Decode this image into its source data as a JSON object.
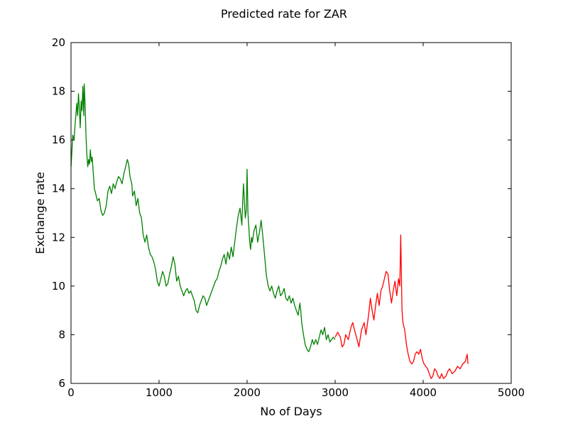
{
  "chart_data": {
    "type": "line",
    "title": "Predicted rate for ZAR",
    "xlabel": "No of Days",
    "ylabel": "Exchange rate",
    "xlim": [
      0,
      5000
    ],
    "ylim": [
      6,
      20
    ],
    "grid": false,
    "legend": "none",
    "x_ticks": [
      0,
      1000,
      2000,
      3000,
      4000,
      5000
    ],
    "y_ticks": [
      6,
      8,
      10,
      12,
      14,
      16,
      18,
      20
    ],
    "series": [
      {
        "color": "#ff0000",
        "points": [
          [
            3000,
            7.9
          ],
          [
            3030,
            8.1
          ],
          [
            3060,
            7.9
          ],
          [
            3080,
            7.5
          ],
          [
            3100,
            7.6
          ],
          [
            3120,
            8.0
          ],
          [
            3150,
            7.8
          ],
          [
            3180,
            8.3
          ],
          [
            3200,
            8.5
          ],
          [
            3220,
            8.2
          ],
          [
            3250,
            7.8
          ],
          [
            3270,
            7.5
          ],
          [
            3300,
            8.2
          ],
          [
            3330,
            8.5
          ],
          [
            3350,
            8.0
          ],
          [
            3380,
            8.8
          ],
          [
            3400,
            9.5
          ],
          [
            3420,
            9.0
          ],
          [
            3440,
            8.6
          ],
          [
            3460,
            9.2
          ],
          [
            3480,
            9.7
          ],
          [
            3500,
            9.2
          ],
          [
            3520,
            9.8
          ],
          [
            3540,
            10.0
          ],
          [
            3560,
            10.3
          ],
          [
            3580,
            10.6
          ],
          [
            3600,
            10.5
          ],
          [
            3620,
            9.8
          ],
          [
            3640,
            9.3
          ],
          [
            3660,
            9.8
          ],
          [
            3680,
            10.2
          ],
          [
            3700,
            9.6
          ],
          [
            3720,
            10.3
          ],
          [
            3735,
            10.0
          ],
          [
            3745,
            12.1
          ],
          [
            3760,
            9.0
          ],
          [
            3770,
            8.5
          ],
          [
            3790,
            8.2
          ],
          [
            3810,
            7.6
          ],
          [
            3830,
            7.2
          ],
          [
            3850,
            6.9
          ],
          [
            3870,
            6.8
          ],
          [
            3890,
            6.9
          ],
          [
            3910,
            7.2
          ],
          [
            3930,
            7.3
          ],
          [
            3950,
            7.2
          ],
          [
            3970,
            7.4
          ],
          [
            3990,
            7.0
          ],
          [
            4010,
            6.8
          ],
          [
            4030,
            6.7
          ],
          [
            4050,
            6.6
          ],
          [
            4070,
            6.4
          ],
          [
            4090,
            6.2
          ],
          [
            4110,
            6.3
          ],
          [
            4130,
            6.6
          ],
          [
            4150,
            6.5
          ],
          [
            4170,
            6.3
          ],
          [
            4190,
            6.2
          ],
          [
            4210,
            6.4
          ],
          [
            4230,
            6.2
          ],
          [
            4260,
            6.3
          ],
          [
            4280,
            6.5
          ],
          [
            4300,
            6.6
          ],
          [
            4330,
            6.4
          ],
          [
            4360,
            6.5
          ],
          [
            4390,
            6.7
          ],
          [
            4420,
            6.6
          ],
          [
            4450,
            6.8
          ],
          [
            4480,
            6.9
          ],
          [
            4500,
            7.2
          ],
          [
            4510,
            6.8
          ]
        ]
      },
      {
        "color": "#008000",
        "points": [
          [
            0,
            14.9
          ],
          [
            10,
            15.5
          ],
          [
            20,
            16.2
          ],
          [
            35,
            16.0
          ],
          [
            50,
            16.8
          ],
          [
            65,
            17.5
          ],
          [
            75,
            17.0
          ],
          [
            85,
            17.9
          ],
          [
            95,
            17.3
          ],
          [
            105,
            16.5
          ],
          [
            115,
            17.6
          ],
          [
            125,
            17.2
          ],
          [
            135,
            18.2
          ],
          [
            145,
            17.0
          ],
          [
            150,
            18.3
          ],
          [
            160,
            17.5
          ],
          [
            170,
            16.2
          ],
          [
            180,
            15.4
          ],
          [
            190,
            14.9
          ],
          [
            200,
            15.2
          ],
          [
            210,
            15.0
          ],
          [
            220,
            15.6
          ],
          [
            230,
            15.1
          ],
          [
            240,
            15.3
          ],
          [
            250,
            14.8
          ],
          [
            265,
            14.0
          ],
          [
            280,
            13.8
          ],
          [
            300,
            13.5
          ],
          [
            320,
            13.6
          ],
          [
            340,
            13.1
          ],
          [
            360,
            12.9
          ],
          [
            380,
            13.0
          ],
          [
            400,
            13.3
          ],
          [
            420,
            13.9
          ],
          [
            440,
            14.1
          ],
          [
            460,
            13.8
          ],
          [
            480,
            14.2
          ],
          [
            500,
            14.0
          ],
          [
            520,
            14.3
          ],
          [
            540,
            14.5
          ],
          [
            560,
            14.4
          ],
          [
            580,
            14.2
          ],
          [
            600,
            14.6
          ],
          [
            620,
            14.9
          ],
          [
            640,
            15.2
          ],
          [
            655,
            15.0
          ],
          [
            670,
            14.5
          ],
          [
            690,
            14.2
          ],
          [
            700,
            13.7
          ],
          [
            720,
            13.9
          ],
          [
            740,
            13.3
          ],
          [
            760,
            13.6
          ],
          [
            780,
            13.0
          ],
          [
            800,
            12.8
          ],
          [
            820,
            12.1
          ],
          [
            840,
            11.8
          ],
          [
            860,
            12.1
          ],
          [
            880,
            11.6
          ],
          [
            900,
            11.3
          ],
          [
            920,
            11.2
          ],
          [
            940,
            11.0
          ],
          [
            960,
            10.7
          ],
          [
            980,
            10.2
          ],
          [
            1000,
            10.0
          ],
          [
            1020,
            10.3
          ],
          [
            1040,
            10.6
          ],
          [
            1060,
            10.4
          ],
          [
            1080,
            10.0
          ],
          [
            1100,
            10.1
          ],
          [
            1120,
            10.5
          ],
          [
            1140,
            10.8
          ],
          [
            1160,
            11.2
          ],
          [
            1180,
            10.9
          ],
          [
            1200,
            10.2
          ],
          [
            1220,
            10.4
          ],
          [
            1240,
            10.0
          ],
          [
            1260,
            9.8
          ],
          [
            1280,
            9.6
          ],
          [
            1300,
            9.8
          ],
          [
            1320,
            9.9
          ],
          [
            1340,
            9.7
          ],
          [
            1360,
            9.8
          ],
          [
            1380,
            9.6
          ],
          [
            1400,
            9.4
          ],
          [
            1420,
            9.0
          ],
          [
            1440,
            8.9
          ],
          [
            1460,
            9.2
          ],
          [
            1480,
            9.4
          ],
          [
            1500,
            9.6
          ],
          [
            1520,
            9.5
          ],
          [
            1540,
            9.2
          ],
          [
            1560,
            9.4
          ],
          [
            1580,
            9.6
          ],
          [
            1600,
            9.8
          ],
          [
            1620,
            10.0
          ],
          [
            1640,
            10.2
          ],
          [
            1660,
            10.3
          ],
          [
            1680,
            10.6
          ],
          [
            1700,
            10.8
          ],
          [
            1720,
            11.1
          ],
          [
            1740,
            11.3
          ],
          [
            1760,
            10.9
          ],
          [
            1780,
            11.4
          ],
          [
            1800,
            11.1
          ],
          [
            1820,
            11.6
          ],
          [
            1840,
            11.2
          ],
          [
            1860,
            11.8
          ],
          [
            1880,
            12.4
          ],
          [
            1900,
            12.9
          ],
          [
            1920,
            13.2
          ],
          [
            1940,
            12.5
          ],
          [
            1950,
            13.5
          ],
          [
            1960,
            14.2
          ],
          [
            1970,
            13.4
          ],
          [
            1980,
            12.8
          ],
          [
            1990,
            13.1
          ],
          [
            2000,
            14.8
          ],
          [
            2010,
            13.0
          ],
          [
            2020,
            12.4
          ],
          [
            2030,
            11.8
          ],
          [
            2040,
            11.5
          ],
          [
            2050,
            12.0
          ],
          [
            2060,
            11.8
          ],
          [
            2080,
            12.3
          ],
          [
            2100,
            12.5
          ],
          [
            2120,
            11.8
          ],
          [
            2140,
            12.2
          ],
          [
            2160,
            12.7
          ],
          [
            2180,
            12.0
          ],
          [
            2200,
            11.2
          ],
          [
            2220,
            10.4
          ],
          [
            2240,
            10.0
          ],
          [
            2260,
            9.8
          ],
          [
            2280,
            10.0
          ],
          [
            2300,
            9.7
          ],
          [
            2320,
            9.5
          ],
          [
            2340,
            9.8
          ],
          [
            2360,
            10.0
          ],
          [
            2380,
            9.6
          ],
          [
            2400,
            9.7
          ],
          [
            2420,
            9.9
          ],
          [
            2440,
            9.5
          ],
          [
            2460,
            9.4
          ],
          [
            2480,
            9.6
          ],
          [
            2500,
            9.3
          ],
          [
            2520,
            9.5
          ],
          [
            2540,
            9.2
          ],
          [
            2560,
            9.0
          ],
          [
            2580,
            8.8
          ],
          [
            2600,
            9.3
          ],
          [
            2610,
            9.0
          ],
          [
            2620,
            8.5
          ],
          [
            2640,
            8.0
          ],
          [
            2660,
            7.6
          ],
          [
            2680,
            7.4
          ],
          [
            2700,
            7.3
          ],
          [
            2720,
            7.5
          ],
          [
            2740,
            7.8
          ],
          [
            2760,
            7.6
          ],
          [
            2780,
            7.8
          ],
          [
            2800,
            7.6
          ],
          [
            2820,
            7.9
          ],
          [
            2840,
            8.2
          ],
          [
            2860,
            8.0
          ],
          [
            2880,
            8.3
          ],
          [
            2900,
            7.8
          ],
          [
            2920,
            8.0
          ],
          [
            2940,
            7.7
          ],
          [
            2960,
            7.8
          ],
          [
            2980,
            7.9
          ],
          [
            3000,
            7.8
          ]
        ]
      }
    ]
  }
}
